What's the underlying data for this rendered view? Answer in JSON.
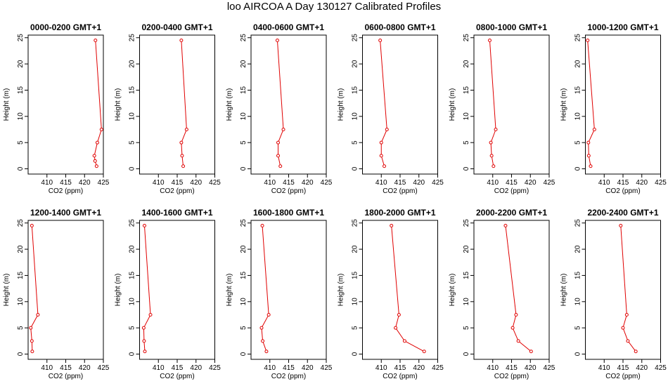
{
  "title": "loo AIRCOA A  Day 130127  Calibrated Profiles",
  "colors": {
    "series": "#e00000",
    "axes": "#000000"
  },
  "chart_data": [
    {
      "type": "line",
      "title": "0000-0200 GMT+1",
      "xlabel": "CO2 (ppm)",
      "ylabel": "Height (m)",
      "xlim": [
        405,
        425
      ],
      "ylim": [
        -1,
        25.5
      ],
      "xticks": [
        410,
        415,
        420,
        425
      ],
      "yticks": [
        0,
        5,
        10,
        15,
        20,
        25
      ],
      "series": [
        {
          "x": [
            422.9,
            424.5,
            423.4,
            422.6,
            422.8,
            423.2
          ],
          "y": [
            24.5,
            7.5,
            5.0,
            2.5,
            1.5,
            0.5
          ]
        }
      ]
    },
    {
      "type": "line",
      "title": "0200-0400 GMT+1",
      "xlabel": "CO2 (ppm)",
      "ylabel": "Height (m)",
      "xlim": [
        405,
        425
      ],
      "ylim": [
        -1,
        25.5
      ],
      "xticks": [
        410,
        415,
        420,
        425
      ],
      "yticks": [
        0,
        5,
        10,
        15,
        20,
        25
      ],
      "series": [
        {
          "x": [
            416.1,
            417.5,
            416.1,
            416.3,
            416.6
          ],
          "y": [
            24.5,
            7.5,
            5.0,
            2.5,
            0.5
          ]
        }
      ]
    },
    {
      "type": "line",
      "title": "0400-0600 GMT+1",
      "xlabel": "CO2 (ppm)",
      "ylabel": "Height (m)",
      "xlim": [
        405,
        425
      ],
      "ylim": [
        -1,
        25.5
      ],
      "xticks": [
        410,
        415,
        420,
        425
      ],
      "yticks": [
        0,
        5,
        10,
        15,
        20,
        25
      ],
      "series": [
        {
          "x": [
            412.0,
            413.6,
            412.2,
            412.2,
            412.8
          ],
          "y": [
            24.5,
            7.5,
            5.0,
            2.5,
            0.5
          ]
        }
      ]
    },
    {
      "type": "line",
      "title": "0600-0800 GMT+1",
      "xlabel": "CO2 (ppm)",
      "ylabel": "Height (m)",
      "xlim": [
        405,
        425
      ],
      "ylim": [
        -1,
        25.5
      ],
      "xticks": [
        410,
        415,
        420,
        425
      ],
      "yticks": [
        0,
        5,
        10,
        15,
        20,
        25
      ],
      "series": [
        {
          "x": [
            409.7,
            411.5,
            410.0,
            410.0,
            410.8
          ],
          "y": [
            24.5,
            7.5,
            5.0,
            2.5,
            0.5
          ]
        }
      ]
    },
    {
      "type": "line",
      "title": "0800-1000 GMT+1",
      "xlabel": "CO2 (ppm)",
      "ylabel": "Height (m)",
      "xlim": [
        405,
        425
      ],
      "ylim": [
        -1,
        25.5
      ],
      "xticks": [
        410,
        415,
        420,
        425
      ],
      "yticks": [
        0,
        5,
        10,
        15,
        20,
        25
      ],
      "series": [
        {
          "x": [
            409.2,
            410.8,
            409.5,
            409.7,
            410.2
          ],
          "y": [
            24.5,
            7.5,
            5.0,
            2.5,
            0.5
          ]
        }
      ]
    },
    {
      "type": "line",
      "title": "1000-1200 GMT+1",
      "xlabel": "CO2 (ppm)",
      "ylabel": "Height (m)",
      "xlim": [
        405,
        425
      ],
      "ylim": [
        -1,
        25.5
      ],
      "xticks": [
        410,
        415,
        420,
        425
      ],
      "yticks": [
        0,
        5,
        10,
        15,
        20,
        25
      ],
      "series": [
        {
          "x": [
            405.6,
            407.4,
            405.8,
            405.9,
            406.4
          ],
          "y": [
            24.5,
            7.5,
            5.0,
            2.5,
            0.5
          ]
        }
      ]
    },
    {
      "type": "line",
      "title": "1200-1400 GMT+1",
      "xlabel": "CO2 (ppm)",
      "ylabel": "Height (m)",
      "xlim": [
        405,
        425
      ],
      "ylim": [
        -1,
        25.5
      ],
      "xticks": [
        410,
        415,
        420,
        425
      ],
      "yticks": [
        0,
        5,
        10,
        15,
        20,
        25
      ],
      "series": [
        {
          "x": [
            406.0,
            407.6,
            405.7,
            406.0,
            406.1
          ],
          "y": [
            24.5,
            7.5,
            5.0,
            2.5,
            0.5
          ]
        }
      ]
    },
    {
      "type": "line",
      "title": "1400-1600 GMT+1",
      "xlabel": "CO2 (ppm)",
      "ylabel": "Height (m)",
      "xlim": [
        405,
        425
      ],
      "ylim": [
        -1,
        25.5
      ],
      "xticks": [
        410,
        415,
        420,
        425
      ],
      "yticks": [
        0,
        5,
        10,
        15,
        20,
        25
      ],
      "series": [
        {
          "x": [
            406.3,
            407.9,
            406.1,
            406.2,
            406.4
          ],
          "y": [
            24.5,
            7.5,
            5.0,
            2.5,
            0.5
          ]
        }
      ]
    },
    {
      "type": "line",
      "title": "1600-1800 GMT+1",
      "xlabel": "CO2 (ppm)",
      "ylabel": "Height (m)",
      "xlim": [
        405,
        425
      ],
      "ylim": [
        -1,
        25.5
      ],
      "xticks": [
        410,
        415,
        420,
        425
      ],
      "yticks": [
        0,
        5,
        10,
        15,
        20,
        25
      ],
      "series": [
        {
          "x": [
            408.0,
            409.7,
            407.8,
            408.1,
            409.1
          ],
          "y": [
            24.5,
            7.5,
            5.0,
            2.5,
            0.5
          ]
        }
      ]
    },
    {
      "type": "line",
      "title": "1800-2000 GMT+1",
      "xlabel": "CO2 (ppm)",
      "ylabel": "Height (m)",
      "xlim": [
        405,
        425
      ],
      "ylim": [
        -1,
        25.5
      ],
      "xticks": [
        410,
        415,
        420,
        425
      ],
      "yticks": [
        0,
        5,
        10,
        15,
        20,
        25
      ],
      "series": [
        {
          "x": [
            412.7,
            414.7,
            413.8,
            416.2,
            421.4
          ],
          "y": [
            24.5,
            7.5,
            5.0,
            2.5,
            0.5
          ]
        }
      ]
    },
    {
      "type": "line",
      "title": "2000-2200 GMT+1",
      "xlabel": "CO2 (ppm)",
      "ylabel": "Height (m)",
      "xlim": [
        405,
        425
      ],
      "ylim": [
        -1,
        25.5
      ],
      "xticks": [
        410,
        415,
        420,
        425
      ],
      "yticks": [
        0,
        5,
        10,
        15,
        20,
        25
      ],
      "series": [
        {
          "x": [
            413.4,
            416.2,
            415.3,
            416.8,
            420.2
          ],
          "y": [
            24.5,
            7.5,
            5.0,
            2.5,
            0.5
          ]
        }
      ]
    },
    {
      "type": "line",
      "title": "2200-2400 GMT+1",
      "xlabel": "CO2 (ppm)",
      "ylabel": "Height (m)",
      "xlim": [
        405,
        425
      ],
      "ylim": [
        -1,
        25.5
      ],
      "xticks": [
        410,
        415,
        420,
        425
      ],
      "yticks": [
        0,
        5,
        10,
        15,
        20,
        25
      ],
      "series": [
        {
          "x": [
            414.4,
            416.0,
            415.0,
            416.3,
            418.4
          ],
          "y": [
            24.5,
            7.5,
            5.0,
            2.5,
            0.5
          ]
        }
      ]
    }
  ]
}
